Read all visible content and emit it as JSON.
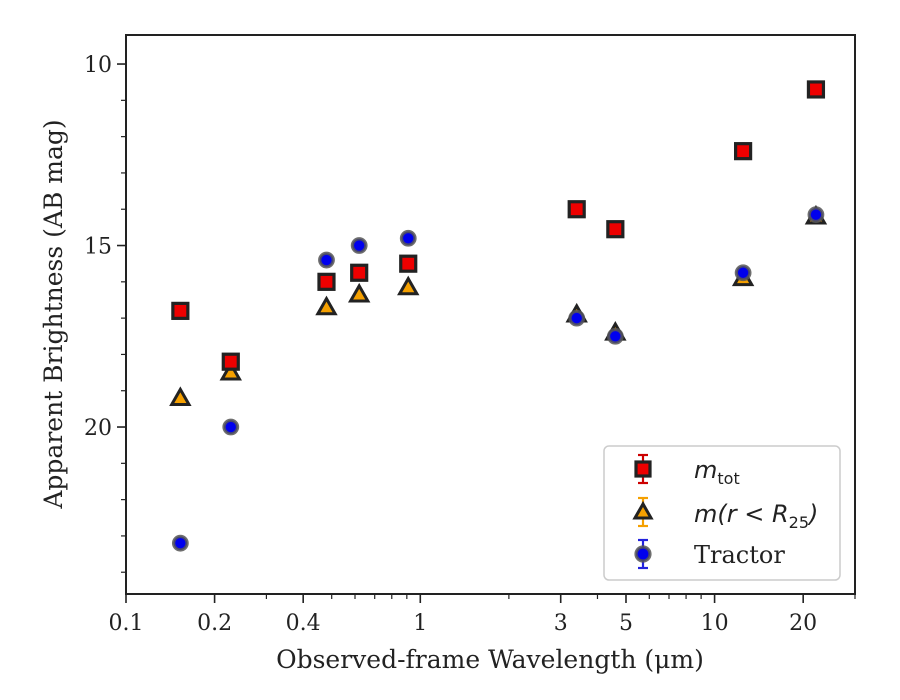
{
  "chart_data": {
    "type": "scatter",
    "title": "",
    "xlabel": "Observed-frame Wavelength (μm)",
    "ylabel": "Apparent Brightness (AB mag)",
    "xscale": "log",
    "xlim": [
      0.1,
      30
    ],
    "ylim": [
      24.6,
      9.2
    ],
    "y_inverted": true,
    "x_ticks": [
      0.1,
      0.2,
      0.4,
      1,
      3,
      5,
      10,
      20
    ],
    "x_tick_labels": [
      "0.1",
      "0.2",
      "0.4",
      "1",
      "3",
      "5",
      "10",
      "20"
    ],
    "y_ticks": [
      10,
      15,
      20
    ],
    "y_tick_labels": [
      "10",
      "15",
      "20"
    ],
    "grid": false,
    "legend_position": "lower-right",
    "series": [
      {
        "name": "m_tot",
        "legend_main": "m",
        "legend_sub": "tot",
        "marker": "square",
        "color": "#ee0000",
        "errorbar_color": "#cc0000",
        "x": [
          0.153,
          0.227,
          0.48,
          0.62,
          0.91,
          3.4,
          4.6,
          12.5,
          22.1
        ],
        "y": [
          16.8,
          18.2,
          16.0,
          15.75,
          15.5,
          14.0,
          14.55,
          12.4,
          10.7
        ]
      },
      {
        "name": "m(r < R25)",
        "legend_main": "m(r < R",
        "legend_sub": "25",
        "legend_close": ")",
        "marker": "triangle",
        "color": "#f5a000",
        "errorbar_color": "#f5a000",
        "x": [
          0.153,
          0.227,
          0.48,
          0.62,
          0.91,
          3.4,
          4.6,
          12.5,
          22.1
        ],
        "y": [
          19.2,
          18.5,
          16.7,
          16.35,
          16.15,
          16.9,
          17.4,
          15.9,
          14.2
        ]
      },
      {
        "name": "Tractor",
        "legend_main": "Tractor",
        "marker": "circle",
        "color": "#0000ee",
        "errorbar_color": "#2222dd",
        "x": [
          0.153,
          0.227,
          0.48,
          0.62,
          0.91,
          3.4,
          4.6,
          12.5,
          22.1
        ],
        "y": [
          23.2,
          20.0,
          15.4,
          15.0,
          14.8,
          17.0,
          17.5,
          15.75,
          14.15
        ]
      }
    ]
  }
}
